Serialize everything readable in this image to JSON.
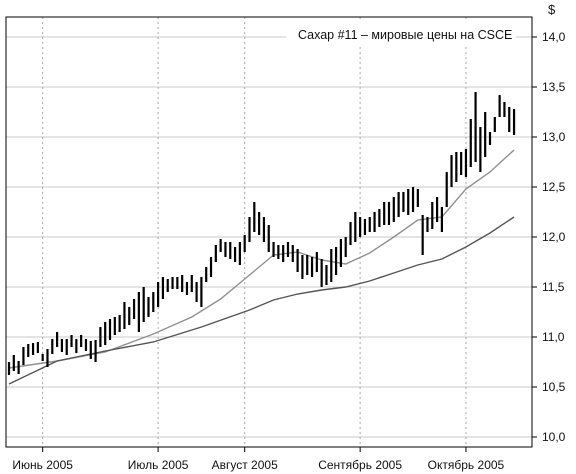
{
  "chart_data": {
    "type": "ohlc",
    "title": "Сахар #11 – мировые цены на CSCE",
    "y_unit": "$",
    "ylim": [
      9.9,
      14.2
    ],
    "y_ticks": [
      "14,0",
      "13,5",
      "13,0",
      "12,5",
      "12,0",
      "11,5",
      "11,0",
      "10,5",
      "10,0"
    ],
    "y_tick_values": [
      14.0,
      13.5,
      13.0,
      12.5,
      12.0,
      11.5,
      11.0,
      10.5,
      10.0
    ],
    "x_ticks": [
      "Июнь 2005",
      "Июль 2005",
      "Август 2005",
      "Сентябрь 2005",
      "Октябрь 2005"
    ],
    "bar_count": 106,
    "x_tick_bar_index": [
      7,
      31,
      49,
      73,
      95
    ],
    "grid": true,
    "series": [
      {
        "type": "ohlc",
        "color": "#000000",
        "values": [
          [
            10.62,
            10.75
          ],
          [
            10.66,
            10.82
          ],
          [
            10.63,
            10.76
          ],
          [
            10.72,
            10.9
          ],
          [
            10.8,
            10.93
          ],
          [
            10.82,
            10.94
          ],
          [
            10.84,
            10.95
          ],
          [
            10.76,
            10.83
          ],
          [
            10.7,
            10.88
          ],
          [
            10.83,
            10.98
          ],
          [
            10.9,
            11.05
          ],
          [
            10.85,
            10.98
          ],
          [
            10.82,
            10.98
          ],
          [
            10.9,
            11.02
          ],
          [
            10.84,
            10.98
          ],
          [
            10.9,
            11.02
          ],
          [
            10.86,
            10.98
          ],
          [
            10.78,
            10.96
          ],
          [
            10.75,
            10.97
          ],
          [
            10.9,
            11.1
          ],
          [
            10.92,
            11.15
          ],
          [
            10.97,
            11.18
          ],
          [
            11.02,
            11.2
          ],
          [
            11.05,
            11.22
          ],
          [
            11.08,
            11.35
          ],
          [
            11.12,
            11.3
          ],
          [
            11.18,
            11.38
          ],
          [
            11.05,
            11.45
          ],
          [
            11.15,
            11.5
          ],
          [
            11.2,
            11.4
          ],
          [
            11.25,
            11.45
          ],
          [
            11.3,
            11.55
          ],
          [
            11.38,
            11.6
          ],
          [
            11.45,
            11.58
          ],
          [
            11.48,
            11.6
          ],
          [
            11.48,
            11.6
          ],
          [
            11.45,
            11.62
          ],
          [
            11.42,
            11.55
          ],
          [
            11.45,
            11.62
          ],
          [
            11.35,
            11.55
          ],
          [
            11.3,
            11.6
          ],
          [
            11.55,
            11.7
          ],
          [
            11.6,
            11.8
          ],
          [
            11.75,
            11.92
          ],
          [
            11.85,
            11.98
          ],
          [
            11.8,
            11.95
          ],
          [
            11.78,
            11.95
          ],
          [
            11.75,
            11.9
          ],
          [
            11.72,
            11.95
          ],
          [
            11.85,
            12.02
          ],
          [
            11.95,
            12.2
          ],
          [
            12.05,
            12.35
          ],
          [
            12.02,
            12.25
          ],
          [
            11.95,
            12.2
          ],
          [
            11.85,
            12.12
          ],
          [
            11.8,
            11.95
          ],
          [
            11.78,
            11.92
          ],
          [
            11.75,
            11.92
          ],
          [
            11.8,
            11.95
          ],
          [
            11.75,
            11.92
          ],
          [
            11.65,
            11.88
          ],
          [
            11.58,
            11.82
          ],
          [
            11.62,
            11.82
          ],
          [
            11.6,
            11.8
          ],
          [
            11.65,
            11.85
          ],
          [
            11.5,
            11.78
          ],
          [
            11.52,
            11.72
          ],
          [
            11.55,
            11.88
          ],
          [
            11.62,
            11.9
          ],
          [
            11.7,
            11.98
          ],
          [
            11.8,
            12.0
          ],
          [
            11.92,
            12.15
          ],
          [
            11.95,
            12.25
          ],
          [
            12.0,
            12.2
          ],
          [
            12.02,
            12.18
          ],
          [
            12.05,
            12.2
          ],
          [
            12.05,
            12.25
          ],
          [
            12.1,
            12.28
          ],
          [
            12.12,
            12.35
          ],
          [
            12.12,
            12.35
          ],
          [
            12.15,
            12.4
          ],
          [
            12.2,
            12.45
          ],
          [
            12.25,
            12.45
          ],
          [
            12.22,
            12.48
          ],
          [
            12.25,
            12.5
          ],
          [
            12.3,
            12.48
          ],
          [
            11.82,
            12.22
          ],
          [
            12.05,
            12.2
          ],
          [
            12.08,
            12.35
          ],
          [
            12.15,
            12.4
          ],
          [
            12.05,
            12.3
          ],
          [
            12.3,
            12.65
          ],
          [
            12.5,
            12.82
          ],
          [
            12.55,
            12.85
          ],
          [
            12.62,
            12.85
          ],
          [
            12.6,
            12.88
          ],
          [
            12.7,
            13.18
          ],
          [
            12.75,
            13.45
          ],
          [
            12.65,
            13.1
          ],
          [
            12.8,
            13.25
          ],
          [
            12.92,
            13.05
          ],
          [
            13.05,
            13.2
          ],
          [
            13.2,
            13.42
          ],
          [
            13.2,
            13.35
          ],
          [
            13.05,
            13.3
          ],
          [
            13.02,
            13.28
          ]
        ]
      },
      {
        "type": "line",
        "color": "#909090",
        "values": [
          [
            0,
            10.69
          ],
          [
            10,
            10.76
          ],
          [
            20,
            10.85
          ],
          [
            30,
            11.03
          ],
          [
            38,
            11.2
          ],
          [
            44,
            11.38
          ],
          [
            50,
            11.62
          ],
          [
            55,
            11.82
          ],
          [
            60,
            11.85
          ],
          [
            65,
            11.77
          ],
          [
            70,
            11.73
          ],
          [
            75,
            11.84
          ],
          [
            80,
            12.0
          ],
          [
            85,
            12.17
          ],
          [
            90,
            12.2
          ],
          [
            95,
            12.48
          ],
          [
            100,
            12.65
          ],
          [
            105,
            12.87
          ]
        ]
      },
      {
        "type": "line",
        "color": "#555555",
        "values": [
          [
            0,
            10.53
          ],
          [
            10,
            10.76
          ],
          [
            20,
            10.86
          ],
          [
            30,
            10.95
          ],
          [
            40,
            11.1
          ],
          [
            50,
            11.27
          ],
          [
            55,
            11.37
          ],
          [
            60,
            11.43
          ],
          [
            65,
            11.47
          ],
          [
            70,
            11.5
          ],
          [
            75,
            11.56
          ],
          [
            80,
            11.64
          ],
          [
            85,
            11.72
          ],
          [
            90,
            11.78
          ],
          [
            95,
            11.9
          ],
          [
            100,
            12.04
          ],
          [
            105,
            12.2
          ]
        ]
      }
    ]
  }
}
